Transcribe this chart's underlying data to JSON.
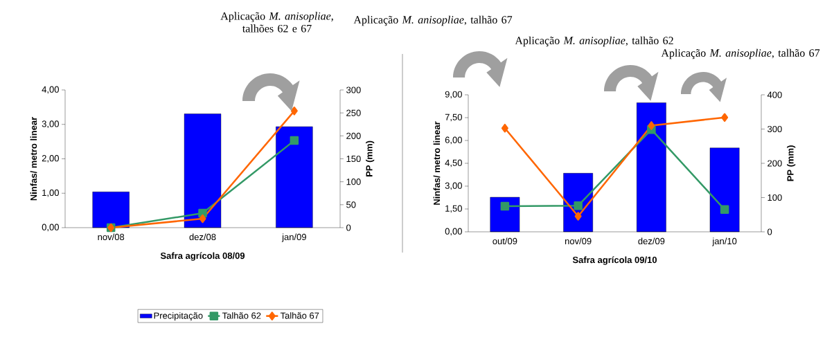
{
  "chart_data": [
    {
      "type": "bar",
      "categories": [
        "nov/08",
        "dez/08",
        "jan/09"
      ],
      "xlabel": "Safra agrícola 08/09",
      "ylabel": "Ninfas/ metro linear",
      "y2label": "PP (mm)",
      "ylim": [
        0,
        4
      ],
      "yticks": [
        {
          "value": 0,
          "label": "0,00"
        },
        {
          "value": 1,
          "label": "1,00"
        },
        {
          "value": 2,
          "label": "2,00"
        },
        {
          "value": 3,
          "label": "3,00"
        },
        {
          "value": 4,
          "label": "4,00"
        }
      ],
      "y2lim": [
        0,
        300
      ],
      "y2ticks": [
        0,
        50,
        100,
        150,
        200,
        250,
        300
      ],
      "legend": "bottom",
      "annotations": [
        "Aplicação *M. anisopliae*, talhões 62 e 67"
      ],
      "series": [
        {
          "name": "Precipitação",
          "axis": "y2",
          "color": "#0000ff",
          "values": [
            78,
            248,
            220
          ]
        },
        {
          "name": "Talhão 62",
          "type": "line",
          "color": "#339966",
          "marker": "square",
          "values": [
            0.0,
            0.42,
            2.53
          ]
        },
        {
          "name": "Talhão 67",
          "type": "line",
          "color": "#ff6600",
          "marker": "diamond",
          "values": [
            0.0,
            0.26,
            3.39
          ]
        }
      ]
    },
    {
      "type": "bar",
      "categories": [
        "out/09",
        "nov/09",
        "dez/09",
        "jan/10"
      ],
      "xlabel": "Safra agrícola 09/10",
      "ylabel": "Ninfas/ metro linear",
      "y2label": "PP (mm)",
      "ylim": [
        0,
        9
      ],
      "yticks": [
        {
          "value": 0,
          "label": "0,00"
        },
        {
          "value": 1.5,
          "label": "1,50"
        },
        {
          "value": 3,
          "label": "3,00"
        },
        {
          "value": 4.5,
          "label": "4,50"
        },
        {
          "value": 6,
          "label": "6,00"
        },
        {
          "value": 7.5,
          "label": "7,50"
        },
        {
          "value": 9,
          "label": "9,00"
        }
      ],
      "y2lim": [
        0,
        400
      ],
      "y2ticks": [
        0,
        100,
        200,
        300,
        400
      ],
      "annotations": [
        "Aplicação *M. anisopliae*, talhão 67",
        "Aplicação *M. anisopliae*, talhão 62",
        "Aplicação *M. anisopliae*, talhão 67"
      ],
      "series": [
        {
          "axis": "y2",
          "color": "#0000ff",
          "values": [
            101,
            171,
            377,
            245
          ]
        },
        {
          "type": "line",
          "color": "#339966",
          "marker": "square",
          "values": [
            1.68,
            1.72,
            6.72,
            1.46
          ]
        },
        {
          "type": "line",
          "color": "#ff6600",
          "marker": "diamond",
          "values": [
            6.81,
            1.02,
            6.98,
            7.51
          ]
        }
      ]
    }
  ]
}
